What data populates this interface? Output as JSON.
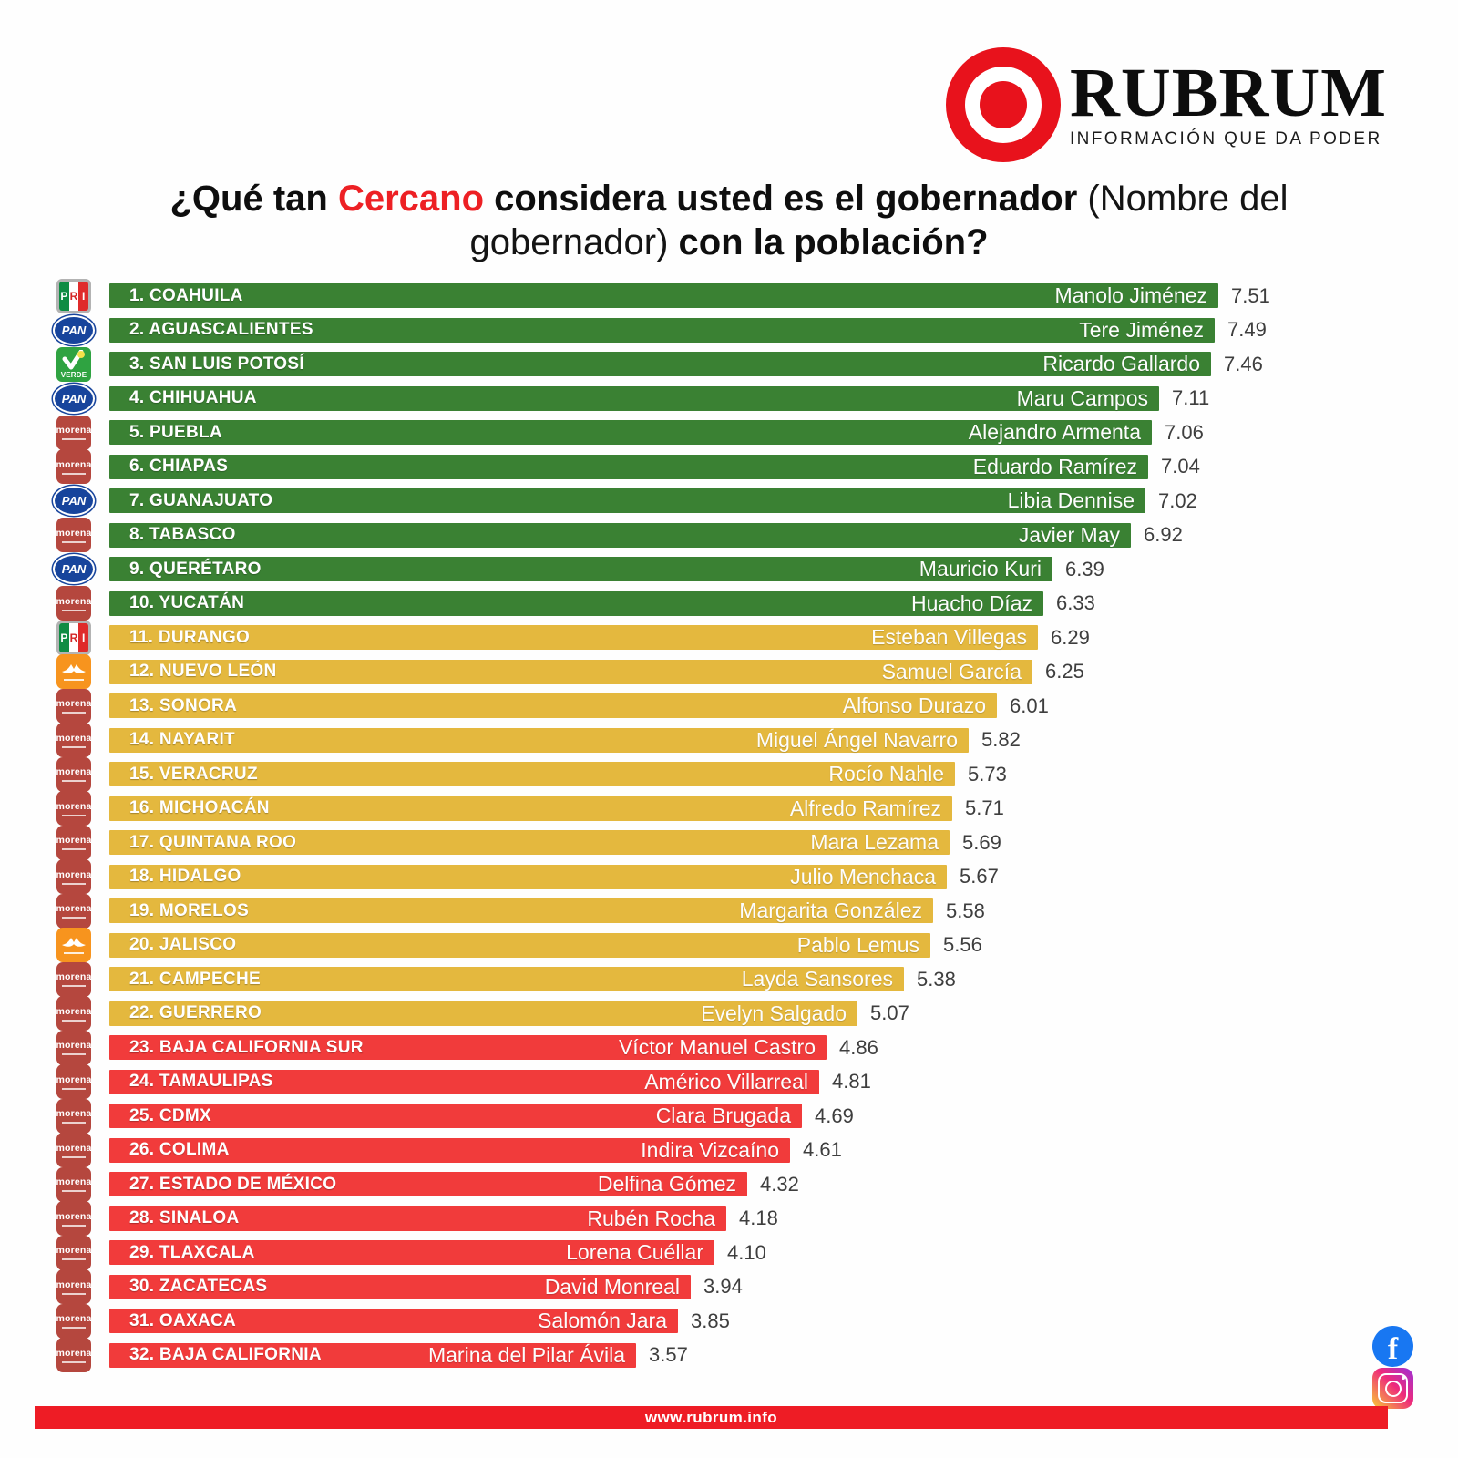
{
  "brand": {
    "name": "RUBRUM",
    "tagline": "INFORMACIÓN QUE DA PODER",
    "logo": "bullseye-target-icon",
    "logo_color": "#e8121c"
  },
  "title": {
    "segments": [
      {
        "text": "¿Qué tan ",
        "style": "bold"
      },
      {
        "text": "Cercano",
        "style": "bold-red"
      },
      {
        "text": " considera usted es el gobernador ",
        "style": "bold"
      },
      {
        "text": "(Nombre del gobernador) ",
        "style": "regular"
      },
      {
        "text": "con la población?",
        "style": "bold"
      }
    ],
    "accent_color": "#ed2024"
  },
  "chart_data": {
    "type": "bar",
    "orientation": "horizontal",
    "value_range": [
      0,
      7.51
    ],
    "value_decimals": 2,
    "grid": false,
    "legend": false,
    "tier_colors": {
      "green": "#3a8133",
      "yellow": "#e4b83e",
      "red": "#f13b3b"
    },
    "rows": [
      {
        "rank": 1,
        "state": "COAHUILA",
        "party": "PRI",
        "governor": "Manolo Jiménez",
        "value": 7.51,
        "tier": "green"
      },
      {
        "rank": 2,
        "state": "AGUASCALIENTES",
        "party": "PAN",
        "governor": "Tere Jiménez",
        "value": 7.49,
        "tier": "green"
      },
      {
        "rank": 3,
        "state": "SAN LUIS POTOSÍ",
        "party": "VERDE",
        "governor": "Ricardo Gallardo",
        "value": 7.46,
        "tier": "green"
      },
      {
        "rank": 4,
        "state": "CHIHUAHUA",
        "party": "PAN",
        "governor": "Maru Campos",
        "value": 7.11,
        "tier": "green"
      },
      {
        "rank": 5,
        "state": "PUEBLA",
        "party": "MORENA",
        "governor": "Alejandro Armenta",
        "value": 7.06,
        "tier": "green"
      },
      {
        "rank": 6,
        "state": "CHIAPAS",
        "party": "MORENA",
        "governor": "Eduardo Ramírez",
        "value": 7.04,
        "tier": "green"
      },
      {
        "rank": 7,
        "state": "GUANAJUATO",
        "party": "PAN",
        "governor": "Libia Dennise",
        "value": 7.02,
        "tier": "green"
      },
      {
        "rank": 8,
        "state": "TABASCO",
        "party": "MORENA",
        "governor": "Javier May",
        "value": 6.92,
        "tier": "green"
      },
      {
        "rank": 9,
        "state": "QUERÉTARO",
        "party": "PAN",
        "governor": "Mauricio Kuri",
        "value": 6.39,
        "tier": "green"
      },
      {
        "rank": 10,
        "state": "YUCATÁN",
        "party": "MORENA",
        "governor": "Huacho Díaz",
        "value": 6.33,
        "tier": "green"
      },
      {
        "rank": 11,
        "state": "DURANGO",
        "party": "PRI",
        "governor": "Esteban Villegas",
        "value": 6.29,
        "tier": "yellow"
      },
      {
        "rank": 12,
        "state": "NUEVO LEÓN",
        "party": "MC",
        "governor": "Samuel García",
        "value": 6.25,
        "tier": "yellow"
      },
      {
        "rank": 13,
        "state": "SONORA",
        "party": "MORENA",
        "governor": "Alfonso Durazo",
        "value": 6.01,
        "tier": "yellow"
      },
      {
        "rank": 14,
        "state": "NAYARIT",
        "party": "MORENA",
        "governor": "Miguel Ángel Navarro",
        "value": 5.82,
        "tier": "yellow"
      },
      {
        "rank": 15,
        "state": "VERACRUZ",
        "party": "MORENA",
        "governor": "Rocío Nahle",
        "value": 5.73,
        "tier": "yellow"
      },
      {
        "rank": 16,
        "state": "MICHOACÁN",
        "party": "MORENA",
        "governor": "Alfredo Ramírez",
        "value": 5.71,
        "tier": "yellow"
      },
      {
        "rank": 17,
        "state": "QUINTANA ROO",
        "party": "MORENA",
        "governor": "Mara Lezama",
        "value": 5.69,
        "tier": "yellow"
      },
      {
        "rank": 18,
        "state": "HIDALGO",
        "party": "MORENA",
        "governor": "Julio Menchaca",
        "value": 5.67,
        "tier": "yellow"
      },
      {
        "rank": 19,
        "state": "MORELOS",
        "party": "MORENA",
        "governor": "Margarita González",
        "value": 5.58,
        "tier": "yellow"
      },
      {
        "rank": 20,
        "state": "JALISCO",
        "party": "MC",
        "governor": "Pablo Lemus",
        "value": 5.56,
        "tier": "yellow"
      },
      {
        "rank": 21,
        "state": "CAMPECHE",
        "party": "MORENA",
        "governor": "Layda Sansores",
        "value": 5.38,
        "tier": "yellow"
      },
      {
        "rank": 22,
        "state": "GUERRERO",
        "party": "MORENA",
        "governor": "Evelyn Salgado",
        "value": 5.07,
        "tier": "yellow"
      },
      {
        "rank": 23,
        "state": "BAJA CALIFORNIA SUR",
        "party": "MORENA",
        "governor": "Víctor Manuel Castro",
        "value": 4.86,
        "tier": "red"
      },
      {
        "rank": 24,
        "state": "TAMAULIPAS",
        "party": "MORENA",
        "governor": "Américo Villarreal",
        "value": 4.81,
        "tier": "red"
      },
      {
        "rank": 25,
        "state": "CDMX",
        "party": "MORENA",
        "governor": "Clara Brugada",
        "value": 4.69,
        "tier": "red"
      },
      {
        "rank": 26,
        "state": "COLIMA",
        "party": "MORENA",
        "governor": "Indira Vizcaíno",
        "value": 4.61,
        "tier": "red"
      },
      {
        "rank": 27,
        "state": "ESTADO DE MÉXICO",
        "party": "MORENA",
        "governor": "Delfina Gómez",
        "value": 4.32,
        "tier": "red"
      },
      {
        "rank": 28,
        "state": "SINALOA",
        "party": "MORENA",
        "governor": "Rubén Rocha",
        "value": 4.18,
        "tier": "red"
      },
      {
        "rank": 29,
        "state": "TLAXCALA",
        "party": "MORENA",
        "governor": "Lorena Cuéllar",
        "value": 4.1,
        "tier": "red"
      },
      {
        "rank": 30,
        "state": "ZACATECAS",
        "party": "MORENA",
        "governor": "David Monreal",
        "value": 3.94,
        "tier": "red"
      },
      {
        "rank": 31,
        "state": "OAXACA",
        "party": "MORENA",
        "governor": "Salomón Jara",
        "value": 3.85,
        "tier": "red"
      },
      {
        "rank": 32,
        "state": "BAJA CALIFORNIA",
        "party": "MORENA",
        "governor": "Marina del Pilar Ávila",
        "value": 3.57,
        "tier": "red"
      }
    ]
  },
  "party_icons": {
    "PRI": {
      "icon": "pri-logo-icon",
      "letters": [
        "P",
        "R",
        "I"
      ]
    },
    "PAN": {
      "icon": "pan-logo-icon",
      "label": "PAN"
    },
    "VERDE": {
      "icon": "verde-logo-icon",
      "label": "VERDE"
    },
    "MORENA": {
      "icon": "morena-logo-icon",
      "label": "morena"
    },
    "MC": {
      "icon": "mc-logo-icon",
      "label": ""
    }
  },
  "social": [
    {
      "name": "facebook-icon"
    },
    {
      "name": "instagram-icon"
    }
  ],
  "footer": {
    "url": "www.rubrum.info",
    "bar_color": "#ee1c25"
  }
}
